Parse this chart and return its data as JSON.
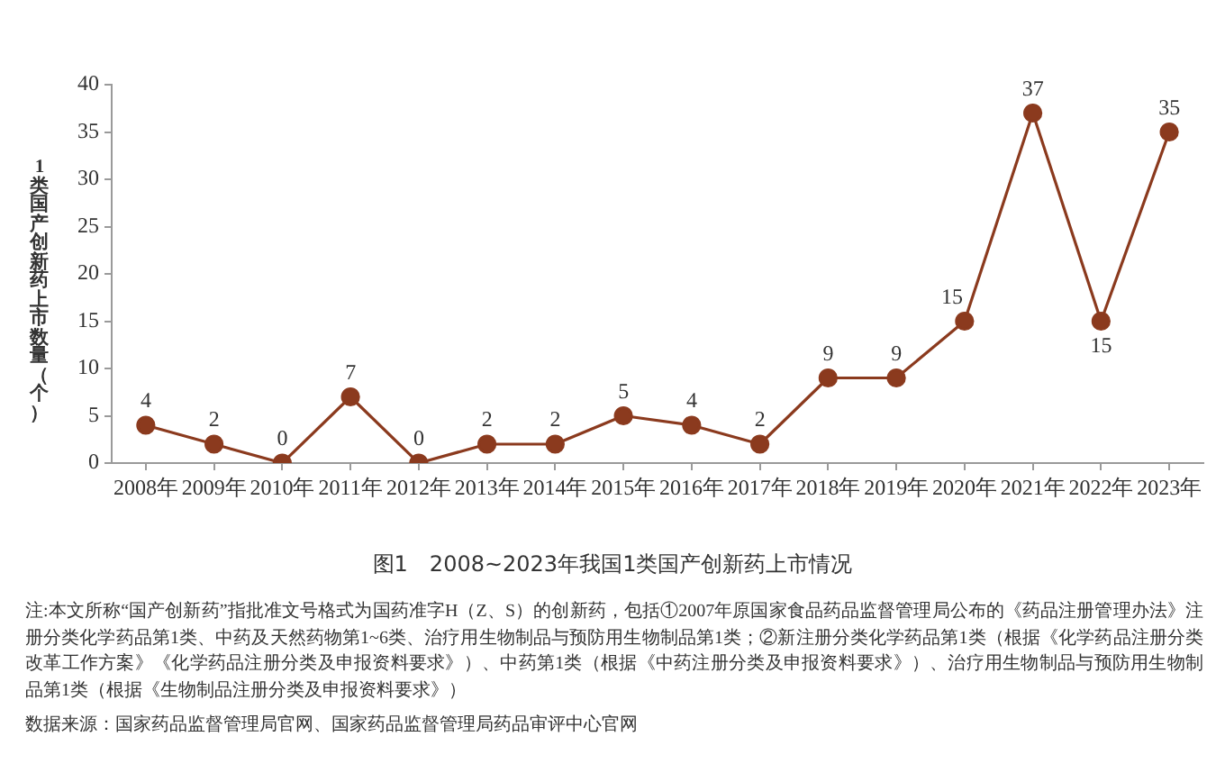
{
  "chart_data": {
    "type": "line",
    "title": "图1　2008~2023年我国1类国产创新药上市情况",
    "ylabel": "1类国产创新药上市数量（个）",
    "categories": [
      "2008年",
      "2009年",
      "2010年",
      "2011年",
      "2012年",
      "2013年",
      "2014年",
      "2015年",
      "2016年",
      "2017年",
      "2018年",
      "2019年",
      "2020年",
      "2021年",
      "2022年",
      "2023年"
    ],
    "series": [
      {
        "color": "#8b3a1e",
        "values": [
          4,
          2,
          0,
          7,
          0,
          2,
          2,
          5,
          4,
          2,
          9,
          9,
          15,
          37,
          15,
          35
        ]
      }
    ],
    "ylim": [
      0,
      40
    ],
    "yticks": [
      0,
      5,
      10,
      15,
      20,
      25,
      30,
      35,
      40
    ],
    "marker": "circle",
    "line_style": "solid",
    "data_labels": true,
    "annotations": [
      "注:本文所称“国产创新药”指批准文号格式为国药准字H（Z、S）的创新药，包括①2007年原国家食品药品监督管理局公布的《药品注册管理办法》注册分类化学药品第1类、中药及天然药物第1~6类、治疗用生物制品与预防用生物制品第1类；②新注册分类化学药品第1类（根据《化学药品注册分类改革工作方案》《化学药品注册分类及申报资料要求》）、中药第1类（根据《中药注册分类及申报资料要求》）、治疗用生物制品与预防用生物制品第1类（根据《生物制品注册分类及申报资料要求》）",
      "数据来源：国家药品监督管理局官网、国家药品监督管理局药品审评中心官网"
    ]
  }
}
